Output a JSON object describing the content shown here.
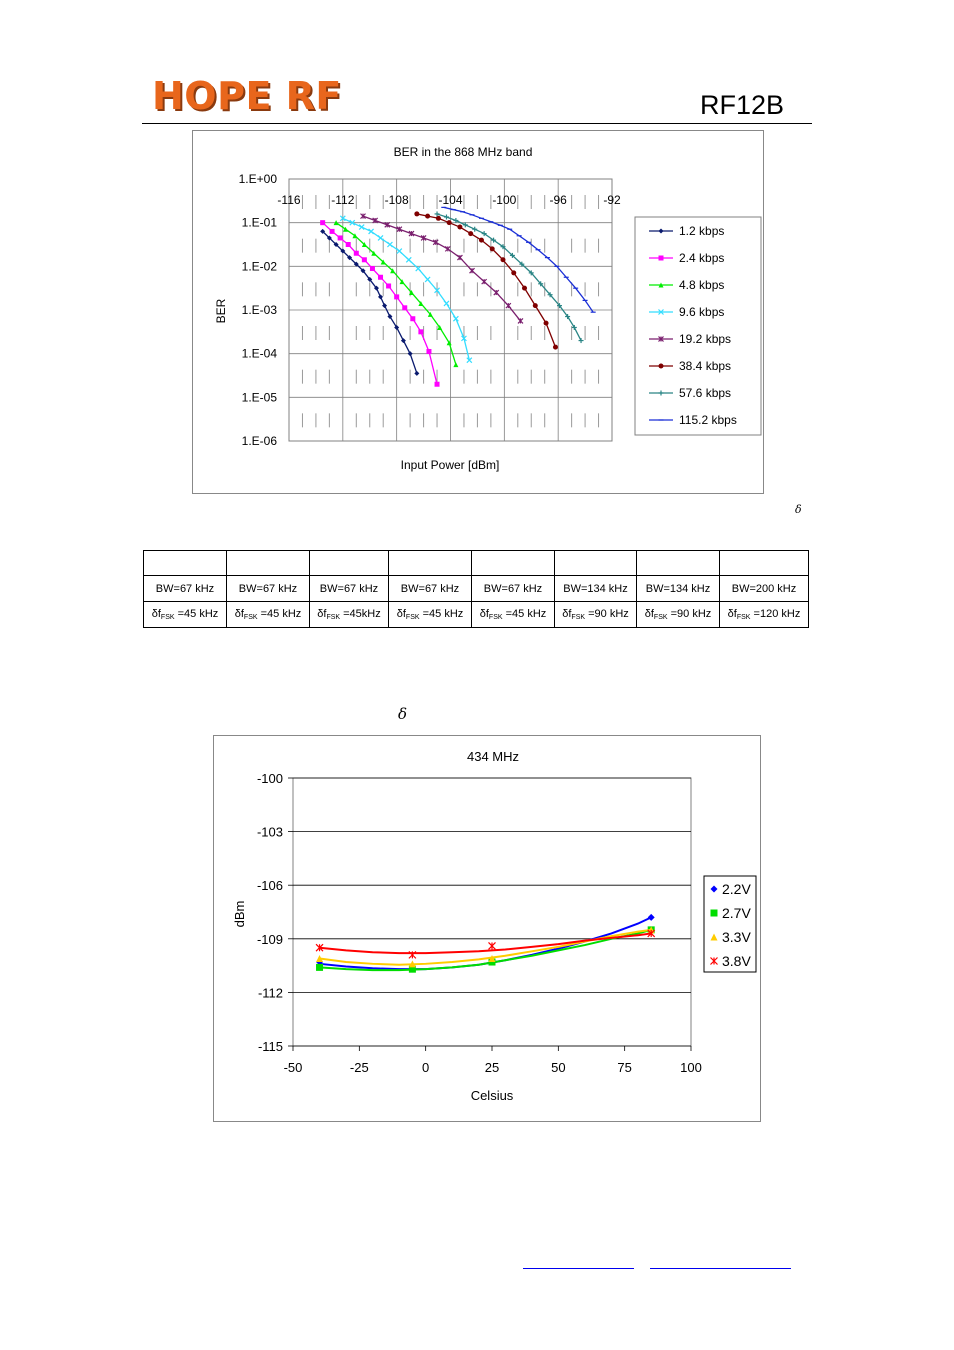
{
  "header": {
    "logo_text": "HOPE RF",
    "model": "RF12B"
  },
  "ber_chart_note": "δ",
  "temp_chart_note": "δ",
  "params_table": {
    "bw": [
      "BW=67 kHz",
      "BW=67 kHz",
      "BW=67 kHz",
      "BW=67 kHz",
      "BW=67 kHz",
      "BW=134 kHz",
      "BW=134 kHz",
      "BW=200 kHz"
    ],
    "dev": [
      {
        "prefix": "δf",
        "sub": "FSK",
        "suffix": " =45 kHz"
      },
      {
        "prefix": "δf",
        "sub": "FSK",
        "suffix": " =45 kHz"
      },
      {
        "prefix": "δf",
        "sub": "FSK",
        "suffix": " =45kHz"
      },
      {
        "prefix": "δf",
        "sub": "FSK",
        "suffix": " =45 kHz"
      },
      {
        "prefix": "δf",
        "sub": "FSK",
        "suffix": " =45 kHz"
      },
      {
        "prefix": "δf",
        "sub": "FSK",
        "suffix": " =90 kHz"
      },
      {
        "prefix": "δf",
        "sub": "FSK",
        "suffix": " =90 kHz"
      },
      {
        "prefix": "δf",
        "sub": "FSK",
        "suffix": " =120 kHz"
      }
    ]
  },
  "chart_data": [
    {
      "type": "line",
      "title": "BER in the 868 MHz band",
      "xlabel": "Input Power [dBm]",
      "ylabel": "BER",
      "xlim": [
        -116,
        -92
      ],
      "x_ticks": [
        "-116",
        "-112",
        "-108",
        "-104",
        "-100",
        "-96",
        "-92"
      ],
      "y_scale": "log",
      "ylim_exponent": [
        -6,
        0
      ],
      "y_ticks": [
        "1.E+00",
        "1.E-01",
        "1.E-02",
        "1.E-03",
        "1.E-04",
        "1.E-05",
        "1.E-06"
      ],
      "legend_position": "right",
      "grid": true,
      "series": [
        {
          "name": "1.2 kbps",
          "color": "#0a1a6e",
          "marker": "diamond",
          "x": [
            -113.5,
            -113.0,
            -112.5,
            -112.0,
            -111.5,
            -111.0,
            -110.5,
            -110.0,
            -109.5,
            -109.2,
            -108.9,
            -108.5,
            -108.0,
            -107.5,
            -107.0,
            -106.5
          ],
          "y_exp": [
            -1.2,
            -1.35,
            -1.5,
            -1.65,
            -1.8,
            -1.95,
            -2.1,
            -2.3,
            -2.5,
            -2.7,
            -2.9,
            -3.15,
            -3.4,
            -3.7,
            -4.0,
            -4.45
          ]
        },
        {
          "name": "2.4 kbps",
          "color": "#ff00ff",
          "marker": "square",
          "x": [
            -113.5,
            -112.8,
            -112.2,
            -111.6,
            -111.0,
            -110.4,
            -109.8,
            -109.2,
            -108.6,
            -108.0,
            -107.4,
            -106.8,
            -106.2,
            -105.6,
            -105.0
          ],
          "y_exp": [
            -1.0,
            -1.2,
            -1.35,
            -1.5,
            -1.7,
            -1.85,
            -2.05,
            -2.25,
            -2.45,
            -2.7,
            -2.95,
            -3.2,
            -3.5,
            -3.95,
            -4.7
          ]
        },
        {
          "name": "4.8 kbps",
          "color": "#00ee00",
          "marker": "triangle",
          "x": [
            -112.5,
            -111.8,
            -111.1,
            -110.4,
            -109.7,
            -109.0,
            -108.3,
            -107.6,
            -106.9,
            -106.2,
            -105.5,
            -104.8,
            -104.1,
            -103.6
          ],
          "y_exp": [
            -1.0,
            -1.15,
            -1.3,
            -1.5,
            -1.7,
            -1.9,
            -2.1,
            -2.35,
            -2.6,
            -2.85,
            -3.1,
            -3.4,
            -3.75,
            -4.25
          ]
        },
        {
          "name": "9.6 kbps",
          "color": "#33ddff",
          "marker": "x",
          "x": [
            -112.0,
            -111.3,
            -110.6,
            -109.9,
            -109.2,
            -108.5,
            -107.8,
            -107.1,
            -106.4,
            -105.7,
            -105.0,
            -104.3,
            -103.6,
            -103.0,
            -102.6
          ],
          "y_exp": [
            -0.9,
            -1.0,
            -1.1,
            -1.2,
            -1.35,
            -1.5,
            -1.65,
            -1.85,
            -2.05,
            -2.3,
            -2.55,
            -2.85,
            -3.2,
            -3.65,
            -4.15
          ]
        },
        {
          "name": "19.2 kbps",
          "color": "#7a1f6e",
          "marker": "asterisk",
          "x": [
            -110.5,
            -109.6,
            -108.7,
            -107.8,
            -106.9,
            -106.0,
            -105.1,
            -104.2,
            -103.3,
            -102.4,
            -101.5,
            -100.6,
            -99.7,
            -98.8
          ],
          "y_exp": [
            -0.85,
            -0.95,
            -1.05,
            -1.15,
            -1.25,
            -1.35,
            -1.45,
            -1.6,
            -1.8,
            -2.1,
            -2.35,
            -2.6,
            -2.9,
            -3.25
          ]
        },
        {
          "name": "38.4 kbps",
          "color": "#7f0000",
          "marker": "circle",
          "x": [
            -106.5,
            -105.7,
            -104.9,
            -104.1,
            -103.3,
            -102.5,
            -101.7,
            -100.9,
            -100.1,
            -99.3,
            -98.5,
            -97.7,
            -96.9,
            -96.2
          ],
          "y_exp": [
            -0.8,
            -0.85,
            -0.9,
            -1.0,
            -1.1,
            -1.25,
            -1.4,
            -1.6,
            -1.85,
            -2.15,
            -2.5,
            -2.9,
            -3.3,
            -3.85
          ]
        },
        {
          "name": "57.6 kbps",
          "color": "#2a8585",
          "marker": "plus",
          "x": [
            -105.0,
            -104.3,
            -103.6,
            -102.9,
            -102.2,
            -101.5,
            -100.8,
            -100.1,
            -99.4,
            -98.7,
            -98.0,
            -97.3,
            -96.6,
            -95.9,
            -95.3,
            -94.8,
            -94.3
          ],
          "y_exp": [
            -0.8,
            -0.87,
            -0.95,
            -1.05,
            -1.15,
            -1.25,
            -1.4,
            -1.55,
            -1.75,
            -1.95,
            -2.15,
            -2.4,
            -2.65,
            -2.9,
            -3.15,
            -3.4,
            -3.7
          ]
        },
        {
          "name": "115.2 kbps",
          "color": "#1a2fd6",
          "marker": "dash",
          "x": [
            -104.5,
            -103.8,
            -103.1,
            -102.4,
            -101.7,
            -101.0,
            -100.3,
            -99.6,
            -98.9,
            -98.2,
            -97.5,
            -96.8,
            -96.1,
            -95.4,
            -94.7,
            -94.0,
            -93.4
          ],
          "y_exp": [
            -0.65,
            -0.7,
            -0.75,
            -0.82,
            -0.9,
            -0.98,
            -1.06,
            -1.15,
            -1.3,
            -1.45,
            -1.62,
            -1.8,
            -2.0,
            -2.25,
            -2.5,
            -2.78,
            -3.05
          ]
        }
      ]
    },
    {
      "type": "line",
      "title": "434 MHz",
      "xlabel": "Celsius",
      "ylabel": "dBm",
      "xlim": [
        -50,
        100
      ],
      "ylim": [
        -115,
        -100
      ],
      "x_ticks": [
        "-50",
        "-25",
        "0",
        "25",
        "50",
        "75",
        "100"
      ],
      "y_ticks": [
        "-100",
        "-103",
        "-106",
        "-109",
        "-112",
        "-115"
      ],
      "legend_position": "right",
      "grid": true,
      "series": [
        {
          "name": "2.2V",
          "color": "#0000ff",
          "marker": "diamond",
          "points_x": [
            -40,
            -5,
            25,
            85
          ],
          "points_y": [
            -110.3,
            -110.7,
            -110.3,
            -107.8
          ],
          "curve_x": [
            -40,
            -30,
            -20,
            -10,
            0,
            10,
            20,
            30,
            40,
            50,
            60,
            70,
            80,
            85
          ],
          "curve_y": [
            -110.4,
            -110.55,
            -110.65,
            -110.7,
            -110.7,
            -110.6,
            -110.45,
            -110.2,
            -109.9,
            -109.55,
            -109.15,
            -108.7,
            -108.15,
            -107.8
          ]
        },
        {
          "name": "2.7V",
          "color": "#00dd00",
          "marker": "square",
          "points_x": [
            -40,
            -5,
            25,
            85
          ],
          "points_y": [
            -110.6,
            -110.7,
            -110.3,
            -108.5
          ],
          "curve_x": [
            -40,
            -30,
            -20,
            -10,
            0,
            10,
            20,
            30,
            40,
            50,
            60,
            70,
            80,
            85
          ],
          "curve_y": [
            -110.6,
            -110.7,
            -110.75,
            -110.75,
            -110.7,
            -110.6,
            -110.45,
            -110.2,
            -109.95,
            -109.65,
            -109.35,
            -109.0,
            -108.7,
            -108.5
          ]
        },
        {
          "name": "3.3V",
          "color": "#ffcc00",
          "marker": "triangle",
          "points_x": [
            -40,
            -5,
            25,
            85
          ],
          "points_y": [
            -110.1,
            -110.4,
            -110.1,
            -108.5
          ],
          "curve_x": [
            -40,
            -30,
            -20,
            -10,
            0,
            10,
            20,
            30,
            40,
            50,
            60,
            70,
            80,
            85
          ],
          "curve_y": [
            -110.1,
            -110.3,
            -110.4,
            -110.45,
            -110.4,
            -110.3,
            -110.15,
            -109.95,
            -109.7,
            -109.45,
            -109.15,
            -108.85,
            -108.6,
            -108.5
          ]
        },
        {
          "name": "3.8V",
          "color": "#ff0000",
          "marker": "asterisk",
          "points_x": [
            -40,
            -5,
            25,
            85
          ],
          "points_y": [
            -109.5,
            -109.9,
            -109.4,
            -108.7
          ],
          "curve_x": [
            -40,
            -30,
            -20,
            -10,
            0,
            10,
            20,
            30,
            40,
            50,
            60,
            70,
            80,
            85
          ],
          "curve_y": [
            -109.5,
            -109.65,
            -109.75,
            -109.8,
            -109.8,
            -109.75,
            -109.7,
            -109.6,
            -109.45,
            -109.3,
            -109.1,
            -108.95,
            -108.8,
            -108.7
          ]
        }
      ]
    }
  ]
}
